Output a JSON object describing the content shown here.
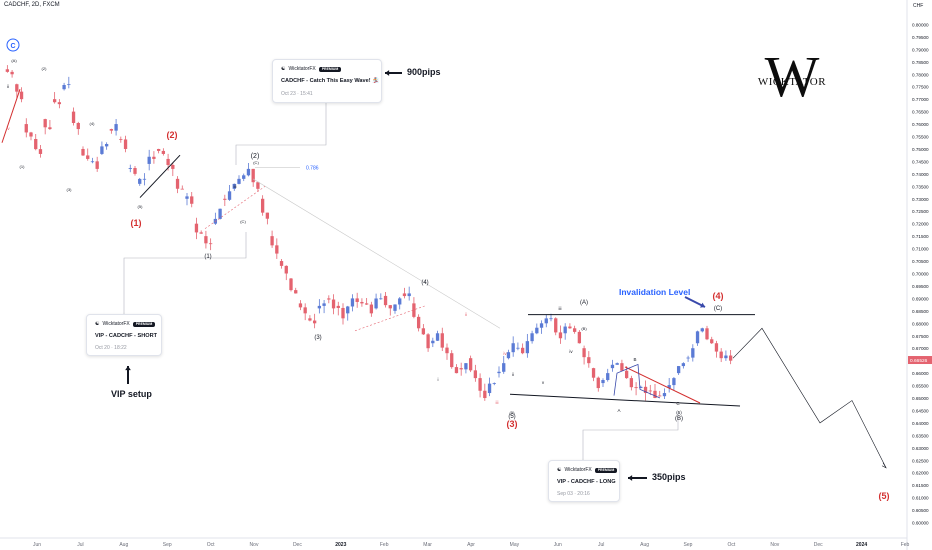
{
  "header": {
    "symbol": "CADCHF, 2D, FXCM"
  },
  "logo": {
    "mark": "W",
    "text": "WICKTATOR"
  },
  "colors": {
    "up": "#5b7bd5",
    "down": "#e4636f",
    "accent_red": "#d32f2f",
    "accent_blue": "#2962ff",
    "currency_label_bg": "#ffffff"
  },
  "cards": [
    {
      "author": "WicktatorFX",
      "badge": "PREMIUM",
      "title": "CADCHF - Catch This Easy Wave! 🏂",
      "date": "Oct 23 · 15:41"
    },
    {
      "author": "WicktatorFX",
      "badge": "PREMIUM",
      "title": "VIP - CADCHF - SHORT",
      "date": "Oct 20 · 18:22"
    },
    {
      "author": "WicktatorFX",
      "badge": "PREMIUM",
      "title": "VIP - CADCHF - LONG",
      "date": "Sep 03 · 20:16"
    }
  ],
  "captions": {
    "pips_900": "900pips",
    "vip_setup": "VIP setup",
    "pips_350": "350pips",
    "invalidation": "Invalidation Level"
  },
  "fib_label": "0.786",
  "wave_labels": {
    "red": [
      "(2)",
      "(1)",
      "(3)",
      "(4)",
      "(5)"
    ],
    "black": [
      "(2)",
      "(C)",
      "(1)",
      "(3)",
      "(4)",
      "(A)",
      "(5)",
      "(B)",
      "(C)",
      "(1)",
      "(2)",
      "(3)",
      "(4)",
      "(5)",
      "(C)",
      "(A)",
      "(B)",
      "(5)"
    ],
    "small": [
      "iii",
      "iv",
      "i",
      "ii",
      "iii",
      "iv",
      "ii",
      "B",
      "A",
      "C",
      "ii",
      "iv",
      "v",
      "iii",
      "(5)"
    ],
    "circle": "C"
  },
  "chart_data": {
    "type": "candlestick",
    "instrument": "CADCHF",
    "timeframe": "2D",
    "source": "FXCM",
    "currency_label": "CHF",
    "ylim": [
      0.595,
      0.805
    ],
    "y_ticks": [
      0.6,
      0.605,
      0.61,
      0.615,
      0.62,
      0.625,
      0.63,
      0.635,
      0.64,
      0.645,
      0.65,
      0.655,
      0.66,
      0.665,
      0.67,
      0.675,
      0.68,
      0.685,
      0.69,
      0.695,
      0.7,
      0.705,
      0.71,
      0.715,
      0.72,
      0.725,
      0.73,
      0.735,
      0.74,
      0.745,
      0.75,
      0.755,
      0.76,
      0.765,
      0.77,
      0.775,
      0.78,
      0.785,
      0.79,
      0.795,
      0.8
    ],
    "last_price": "0.66526",
    "x_ticks": [
      "Jun",
      "Jul",
      "Aug",
      "Sep",
      "Oct",
      "Nov",
      "Dec",
      "2023",
      "Feb",
      "Mar",
      "Apr",
      "May",
      "Jun",
      "Jul",
      "Aug",
      "Sep",
      "Oct",
      "Nov",
      "Dec",
      "2024",
      "Feb"
    ],
    "path_points": [
      [
        0.782,
        0.78
      ],
      [
        0.776,
        0.77
      ],
      [
        0.76,
        0.755
      ],
      [
        0.754,
        0.748
      ],
      [
        0.762,
        0.758
      ],
      [
        0.77,
        0.768
      ],
      [
        0.774,
        0.776
      ],
      [
        0.765,
        0.758
      ],
      [
        0.75,
        0.746
      ],
      [
        0.745,
        0.742
      ],
      [
        0.748,
        0.752
      ],
      [
        0.758,
        0.76
      ],
      [
        0.754,
        0.75
      ],
      [
        0.742,
        0.74
      ],
      [
        0.736,
        0.738
      ],
      [
        0.744,
        0.746
      ],
      [
        0.75,
        0.748
      ],
      [
        0.746,
        0.742
      ],
      [
        0.738,
        0.734
      ],
      [
        0.73,
        0.728
      ],
      [
        0.72,
        0.716
      ],
      [
        0.715,
        0.712
      ],
      [
        0.72,
        0.726
      ],
      [
        0.73,
        0.733
      ],
      [
        0.734,
        0.738
      ],
      [
        0.738,
        0.742
      ],
      [
        0.742,
        0.734
      ],
      [
        0.73,
        0.722
      ],
      [
        0.715,
        0.708
      ],
      [
        0.705,
        0.7
      ],
      [
        0.698,
        0.692
      ],
      [
        0.688,
        0.684
      ],
      [
        0.682,
        0.68
      ],
      [
        0.686,
        0.688
      ],
      [
        0.69,
        0.686
      ],
      [
        0.687,
        0.682
      ],
      [
        0.684,
        0.69
      ],
      [
        0.69,
        0.688
      ],
      [
        0.688,
        0.684
      ],
      [
        0.686,
        0.69
      ],
      [
        0.691,
        0.686
      ],
      [
        0.685,
        0.69
      ],
      [
        0.692,
        0.692
      ],
      [
        0.688,
        0.678
      ],
      [
        0.678,
        0.67
      ],
      [
        0.672,
        0.676
      ],
      [
        0.676,
        0.668
      ],
      [
        0.668,
        0.66
      ],
      [
        0.662,
        0.664
      ],
      [
        0.666,
        0.658
      ],
      [
        0.658,
        0.65
      ],
      [
        0.652,
        0.656
      ],
      [
        0.66,
        0.664
      ],
      [
        0.666,
        0.672
      ],
      [
        0.67,
        0.668
      ],
      [
        0.668,
        0.676
      ],
      [
        0.676,
        0.68
      ],
      [
        0.68,
        0.682
      ],
      [
        0.682,
        0.674
      ],
      [
        0.676,
        0.678
      ],
      [
        0.678,
        0.672
      ],
      [
        0.67,
        0.664
      ],
      [
        0.662,
        0.654
      ],
      [
        0.656,
        0.66
      ],
      [
        0.662,
        0.664
      ],
      [
        0.664,
        0.658
      ],
      [
        0.658,
        0.654
      ],
      [
        0.654,
        0.652
      ],
      [
        0.653,
        0.65
      ],
      [
        0.651,
        0.652
      ],
      [
        0.654,
        0.658
      ],
      [
        0.66,
        0.664
      ],
      [
        0.666,
        0.67
      ],
      [
        0.672,
        0.678
      ],
      [
        0.678,
        0.672
      ],
      [
        0.672,
        0.666
      ],
      [
        0.666,
        0.665
      ]
    ],
    "projection": [
      [
        0.666,
        0.678
      ],
      [
        0.678,
        0.64
      ],
      [
        0.64,
        0.649
      ],
      [
        0.649,
        0.622
      ]
    ]
  }
}
